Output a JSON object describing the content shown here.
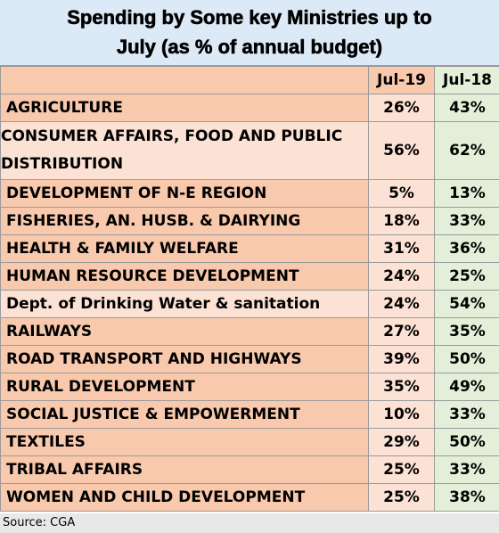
{
  "chart_data": {
    "type": "table",
    "title_line1": "Spending by Some key Ministries up to",
    "title_line2": "July (as % of annual budget)",
    "columns": [
      "Jul-19",
      "Jul-18"
    ],
    "rows": [
      {
        "name": "AGRICULTURE",
        "jul19": "26%",
        "jul18": "43%"
      },
      {
        "name": "CONSUMER AFFAIRS, FOOD AND PUBLIC DISTRIBUTION",
        "jul19": "56%",
        "jul18": "62%"
      },
      {
        "name": "DEVELOPMENT OF N-E REGION",
        "jul19": "5%",
        "jul18": "13%"
      },
      {
        "name": "FISHERIES, AN. HUSB. & DAIRYING",
        "jul19": "18%",
        "jul18": "33%"
      },
      {
        "name": "HEALTH & FAMILY WELFARE",
        "jul19": "31%",
        "jul18": "36%"
      },
      {
        "name": "HUMAN RESOURCE DEVELOPMENT",
        "jul19": "24%",
        "jul18": "25%"
      },
      {
        "name": "Dept. of Drinking Water & sanitation",
        "jul19": "24%",
        "jul18": "54%"
      },
      {
        "name": "RAILWAYS",
        "jul19": "27%",
        "jul18": "35%"
      },
      {
        "name": "ROAD TRANSPORT AND HIGHWAYS",
        "jul19": "39%",
        "jul18": "50%"
      },
      {
        "name": "RURAL DEVELOPMENT",
        "jul19": "35%",
        "jul18": "49%"
      },
      {
        "name": "SOCIAL JUSTICE & EMPOWERMENT",
        "jul19": "10%",
        "jul18": "33%"
      },
      {
        "name": "TEXTILES",
        "jul19": "29%",
        "jul18": "50%"
      },
      {
        "name": "TRIBAL AFFAIRS",
        "jul19": "25%",
        "jul18": "33%"
      },
      {
        "name": "WOMEN AND CHILD DEVELOPMENT",
        "jul19": "25%",
        "jul18": "38%"
      }
    ],
    "source": "Source: CGA"
  },
  "colors": {
    "title_background": "#dce9f6",
    "name_cell_orange": "#f8c9ad",
    "name_cell_light": "#fbe2d4",
    "jul18_cell_green": "#e3efd9",
    "source_background": "#e8e8e8",
    "grid_line": "#9a9a9a"
  }
}
